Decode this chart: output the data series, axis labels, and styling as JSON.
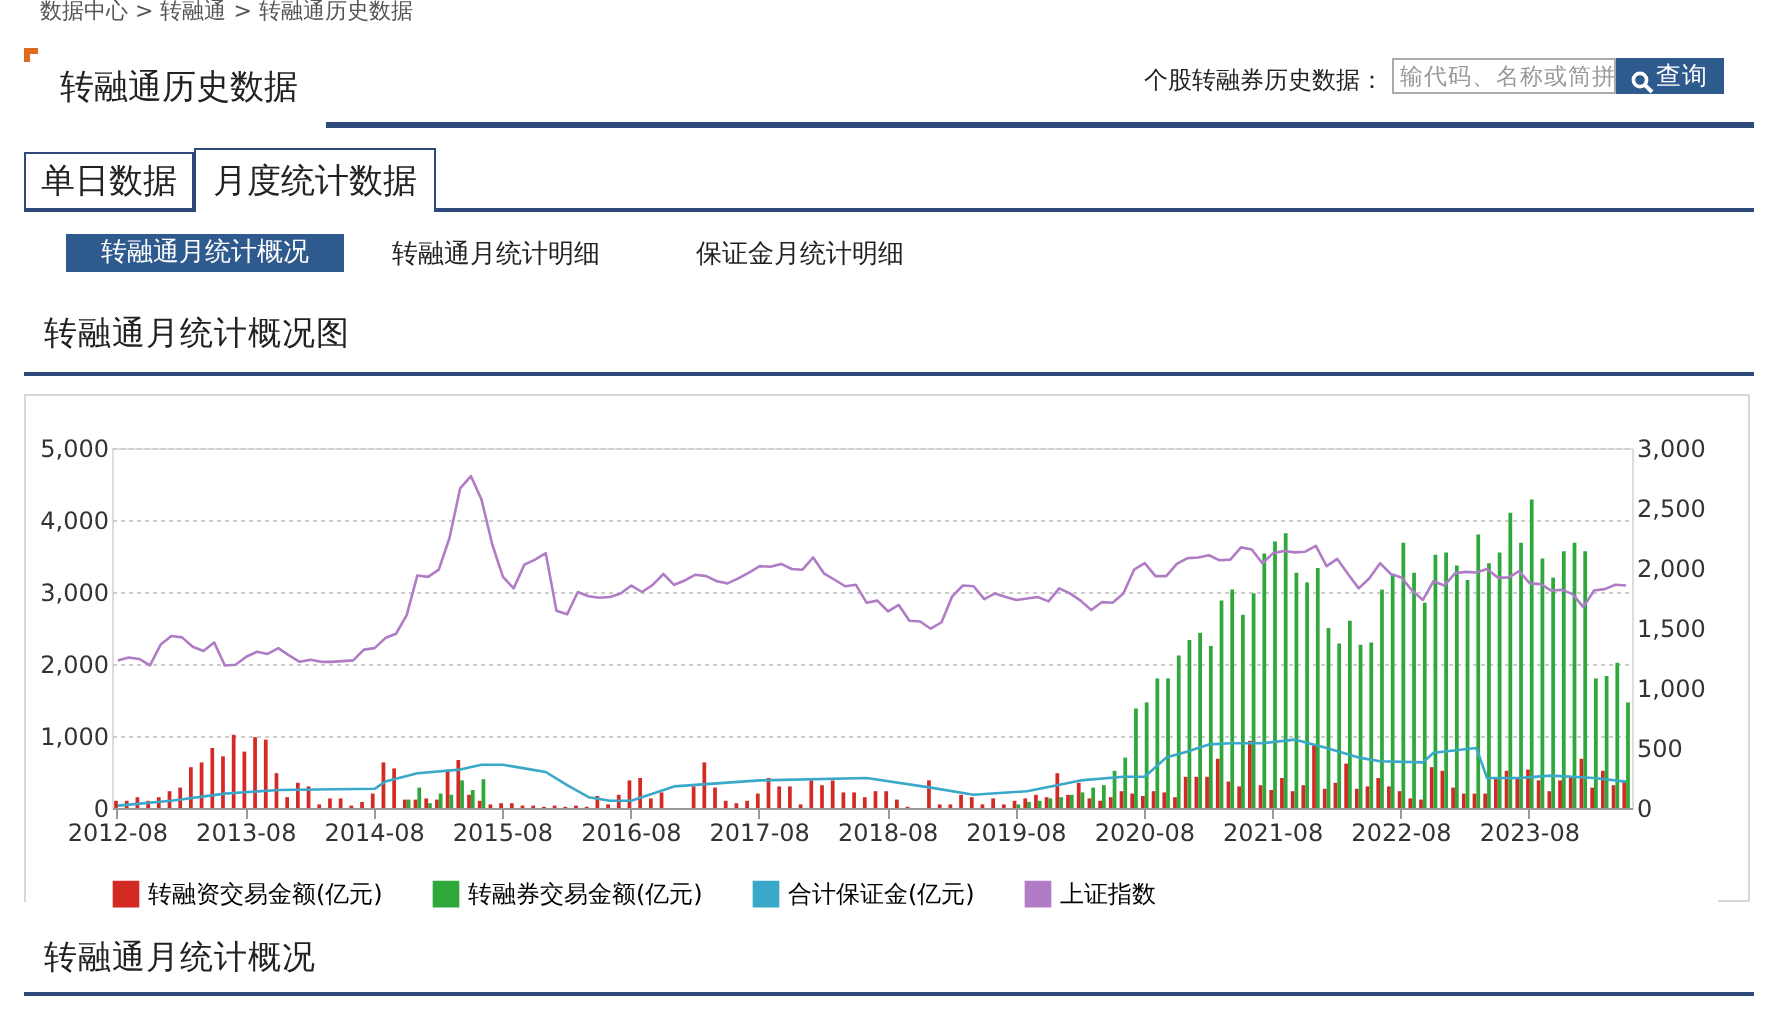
{
  "chart_data": {
    "type": "bar",
    "title": "转融通月统计概况图",
    "annotations": [
      "数据中心 > 转融通 > 转融通历史数据",
      "转融通历史数据",
      "个股转融券历史数据：",
      "输代码、名称或简拼",
      "查询",
      "单日数据",
      "月度统计数据",
      "转融通月统计概况",
      "转融通月统计明细",
      "保证金月统计明细",
      "转融通月统计概况"
    ],
    "x": [
      "2012-08",
      "2012-09",
      "2012-10",
      "2012-11",
      "2012-12",
      "2013-01",
      "2013-02",
      "2013-03",
      "2013-04",
      "2013-05",
      "2013-06",
      "2013-07",
      "2013-08",
      "2013-09",
      "2013-10",
      "2013-11",
      "2013-12",
      "2014-01",
      "2014-02",
      "2014-03",
      "2014-04",
      "2014-05",
      "2014-06",
      "2014-07",
      "2014-08",
      "2014-09",
      "2014-10",
      "2014-11",
      "2014-12",
      "2015-01",
      "2015-02",
      "2015-03",
      "2015-04",
      "2015-05",
      "2015-06",
      "2015-07",
      "2015-08",
      "2015-09",
      "2015-10",
      "2015-11",
      "2015-12",
      "2016-01",
      "2016-02",
      "2016-03",
      "2016-04",
      "2016-05",
      "2016-06",
      "2016-07",
      "2016-08",
      "2016-09",
      "2016-10",
      "2016-11",
      "2016-12",
      "2017-01",
      "2017-02",
      "2017-03",
      "2017-04",
      "2017-05",
      "2017-06",
      "2017-07",
      "2017-08",
      "2017-09",
      "2017-10",
      "2017-11",
      "2017-12",
      "2018-01",
      "2018-02",
      "2018-03",
      "2018-04",
      "2018-05",
      "2018-06",
      "2018-07",
      "2018-08",
      "2018-09",
      "2018-10",
      "2018-11",
      "2018-12",
      "2019-01",
      "2019-02",
      "2019-03",
      "2019-04",
      "2019-05",
      "2019-06",
      "2019-07",
      "2019-08",
      "2019-09",
      "2019-10",
      "2019-11",
      "2019-12",
      "2020-01",
      "2020-02",
      "2020-03",
      "2020-04",
      "2020-05",
      "2020-06",
      "2020-07",
      "2020-08",
      "2020-09",
      "2020-10",
      "2020-11",
      "2020-12",
      "2021-01",
      "2021-02",
      "2021-03",
      "2021-04",
      "2021-05",
      "2021-06",
      "2021-07",
      "2021-08",
      "2021-09",
      "2021-10",
      "2021-11",
      "2021-12",
      "2022-01",
      "2022-02",
      "2022-03",
      "2022-04",
      "2022-05",
      "2022-06",
      "2022-07",
      "2022-08",
      "2022-09",
      "2022-10",
      "2022-11",
      "2022-12",
      "2023-01",
      "2023-02",
      "2023-03",
      "2023-04",
      "2023-05",
      "2023-06",
      "2023-07",
      "2023-08",
      "2023-09",
      "2023-10",
      "2023-11",
      "2023-12",
      "2024-01",
      "2024-02",
      "2024-03",
      "2024-04",
      "2024-05"
    ],
    "xlim": [
      "2012-08",
      "2024-05"
    ],
    "xticks": [
      "2012-08",
      "2013-08",
      "2014-08",
      "2015-08",
      "2016-08",
      "2017-08",
      "2018-08",
      "2019-08",
      "2020-08",
      "2021-08",
      "2022-08",
      "2023-08"
    ],
    "series": [
      {
        "name": "转融资交易金额(亿元)",
        "axis": "y2",
        "color": "#d42a24",
        "values": [
          60,
          60,
          90,
          60,
          90,
          140,
          170,
          340,
          380,
          500,
          430,
          610,
          470,
          590,
          570,
          290,
          90,
          210,
          180,
          30,
          80,
          80,
          20,
          50,
          120,
          380,
          330,
          70,
          70,
          80,
          70,
          320,
          400,
          110,
          60,
          30,
          40,
          40,
          20,
          20,
          10,
          20,
          10,
          20,
          10,
          100,
          30,
          110,
          230,
          250,
          80,
          130,
          null,
          null,
          180,
          380,
          170,
          60,
          40,
          60,
          120,
          250,
          180,
          180,
          30,
          230,
          190,
          230,
          130,
          130,
          90,
          140,
          140,
          70,
          10,
          null,
          230,
          30,
          30,
          110,
          90,
          30,
          80,
          30,
          60,
          80,
          110,
          90,
          290,
          110,
          210,
          80,
          60,
          90,
          140,
          120,
          100,
          140,
          130,
          90,
          260,
          260,
          260,
          410,
          220,
          180,
          560,
          190,
          150,
          250,
          140,
          190,
          530,
          160,
          210,
          370,
          160,
          180,
          250,
          180,
          140,
          80,
          70,
          340,
          310,
          170,
          120,
          120,
          120,
          250,
          310,
          250,
          320,
          230,
          140,
          230,
          250,
          410,
          170,
          310,
          190,
          220
        ]
      },
      {
        "name": "转融券交易金额(亿元)",
        "axis": "y2",
        "color": "#2ea83a",
        "values": [
          null,
          null,
          null,
          null,
          null,
          null,
          null,
          null,
          null,
          null,
          null,
          null,
          null,
          null,
          null,
          null,
          null,
          null,
          null,
          null,
          null,
          null,
          null,
          null,
          null,
          null,
          null,
          70,
          170,
          40,
          120,
          110,
          230,
          150,
          240,
          null,
          null,
          null,
          null,
          null,
          null,
          null,
          null,
          null,
          null,
          null,
          null,
          null,
          null,
          null,
          null,
          null,
          null,
          null,
          null,
          null,
          null,
          null,
          null,
          null,
          null,
          null,
          null,
          null,
          null,
          null,
          null,
          null,
          null,
          null,
          null,
          null,
          null,
          null,
          null,
          null,
          null,
          null,
          null,
          null,
          null,
          null,
          null,
          null,
          30,
          50,
          60,
          80,
          90,
          110,
          130,
          170,
          190,
          310,
          420,
          830,
          880,
          1080,
          1080,
          1270,
          1400,
          1460,
          1350,
          1730,
          1820,
          1610,
          1790,
          2120,
          2220,
          2290,
          1960,
          1880,
          2000,
          1500,
          1370,
          1560,
          1360,
          1380,
          1820,
          1940,
          2210,
          1960,
          1710,
          2110,
          2130,
          2020,
          1900,
          2280,
          2040,
          2130,
          2460,
          2210,
          2570,
          2080,
          1920,
          2140,
          2210,
          2140,
          1080,
          1100,
          1210,
          880
        ]
      },
      {
        "name": "合计保证金(亿元)",
        "type": "line",
        "axis": "y2",
        "color": "#3aa8c8",
        "x": [
          "2012-08",
          "2013-01",
          "2013-06",
          "2013-11",
          "2014-08",
          "2014-09",
          "2014-12",
          "2015-04",
          "2015-06",
          "2015-08",
          "2015-10",
          "2015-12",
          "2016-02",
          "2016-04",
          "2016-06",
          "2016-08",
          "2016-12",
          "2017-08",
          "2018-06",
          "2018-12",
          "2019-04",
          "2019-09",
          "2020-02",
          "2020-06",
          "2020-08",
          "2020-10",
          "2020-12",
          "2021-02",
          "2021-04",
          "2021-07",
          "2021-10",
          "2022-01",
          "2022-04",
          "2022-06",
          "2022-10",
          "2022-11",
          "2023-03",
          "2023-04",
          "2023-07",
          "2023-10",
          "2024-02",
          "2024-05"
        ],
        "values": [
          20,
          60,
          120,
          150,
          160,
          220,
          290,
          320,
          360,
          360,
          330,
          300,
          190,
          90,
          60,
          60,
          180,
          230,
          250,
          170,
          110,
          140,
          230,
          260,
          260,
          420,
          470,
          530,
          540,
          540,
          570,
          500,
          420,
          390,
          380,
          460,
          500,
          250,
          250,
          270,
          250,
          220
        ]
      },
      {
        "name": "上证指数",
        "type": "line",
        "color": "#b07cc6",
        "values": [
          2050,
          2090,
          2070,
          1980,
          2270,
          2390,
          2370,
          2240,
          2180,
          2300,
          1980,
          1990,
          2100,
          2170,
          2140,
          2220,
          2120,
          2030,
          2060,
          2030,
          2030,
          2040,
          2050,
          2200,
          2220,
          2360,
          2420,
          2680,
          3230,
          3210,
          3310,
          3750,
          4440,
          4610,
          4280,
          3660,
          3210,
          3050,
          3380,
          3450,
          3540,
          2740,
          2690,
          3000,
          2940,
          2920,
          2930,
          2980,
          3090,
          3000,
          3100,
          3250,
          3100,
          3160,
          3240,
          3220,
          3150,
          3120,
          3190,
          3270,
          3360,
          3350,
          3390,
          3320,
          3310,
          3480,
          3260,
          3170,
          3080,
          3100,
          2850,
          2880,
          2730,
          2820,
          2600,
          2590,
          2490,
          2580,
          2940,
          3090,
          3080,
          2900,
          2980,
          2930,
          2890,
          2910,
          2930,
          2870,
          3050,
          2980,
          2880,
          2750,
          2860,
          2850,
          2980,
          3310,
          3400,
          3220,
          3220,
          3390,
          3470,
          3480,
          3510,
          3440,
          3450,
          3620,
          3590,
          3400,
          3540,
          3570,
          3550,
          3560,
          3640,
          3360,
          3460,
          3250,
          3050,
          3190,
          3400,
          3250,
          3200,
          3020,
          2890,
          3150,
          3090,
          3260,
          3280,
          3270,
          3320,
          3200,
          3200,
          3290,
          3120,
          3110,
          3020,
          3030,
          2970,
          2790,
          3020,
          3040,
          3100,
          3090
        ]
      }
    ],
    "ylim": [
      0,
      5000
    ],
    "yticks": [
      0,
      {
        "value": 1000,
        "label": "1,000"
      },
      {
        "value": 2000,
        "label": "2,000"
      },
      {
        "value": 3000,
        "label": "3,000"
      },
      {
        "value": 4000,
        "label": "4,000"
      },
      {
        "value": 5000,
        "label": "5,000"
      }
    ],
    "y2lim": [
      0,
      3000
    ],
    "y2ticks": [
      0,
      500,
      {
        "value": 1000,
        "label": "1,000"
      },
      {
        "value": 1500,
        "label": "1,500"
      },
      {
        "value": 2000,
        "label": "2,000"
      },
      {
        "value": 2500,
        "label": "2,500"
      },
      {
        "value": 3000,
        "label": "3,000"
      }
    ],
    "grid": "y",
    "legend": "bottom",
    "line_style": "solid"
  }
}
